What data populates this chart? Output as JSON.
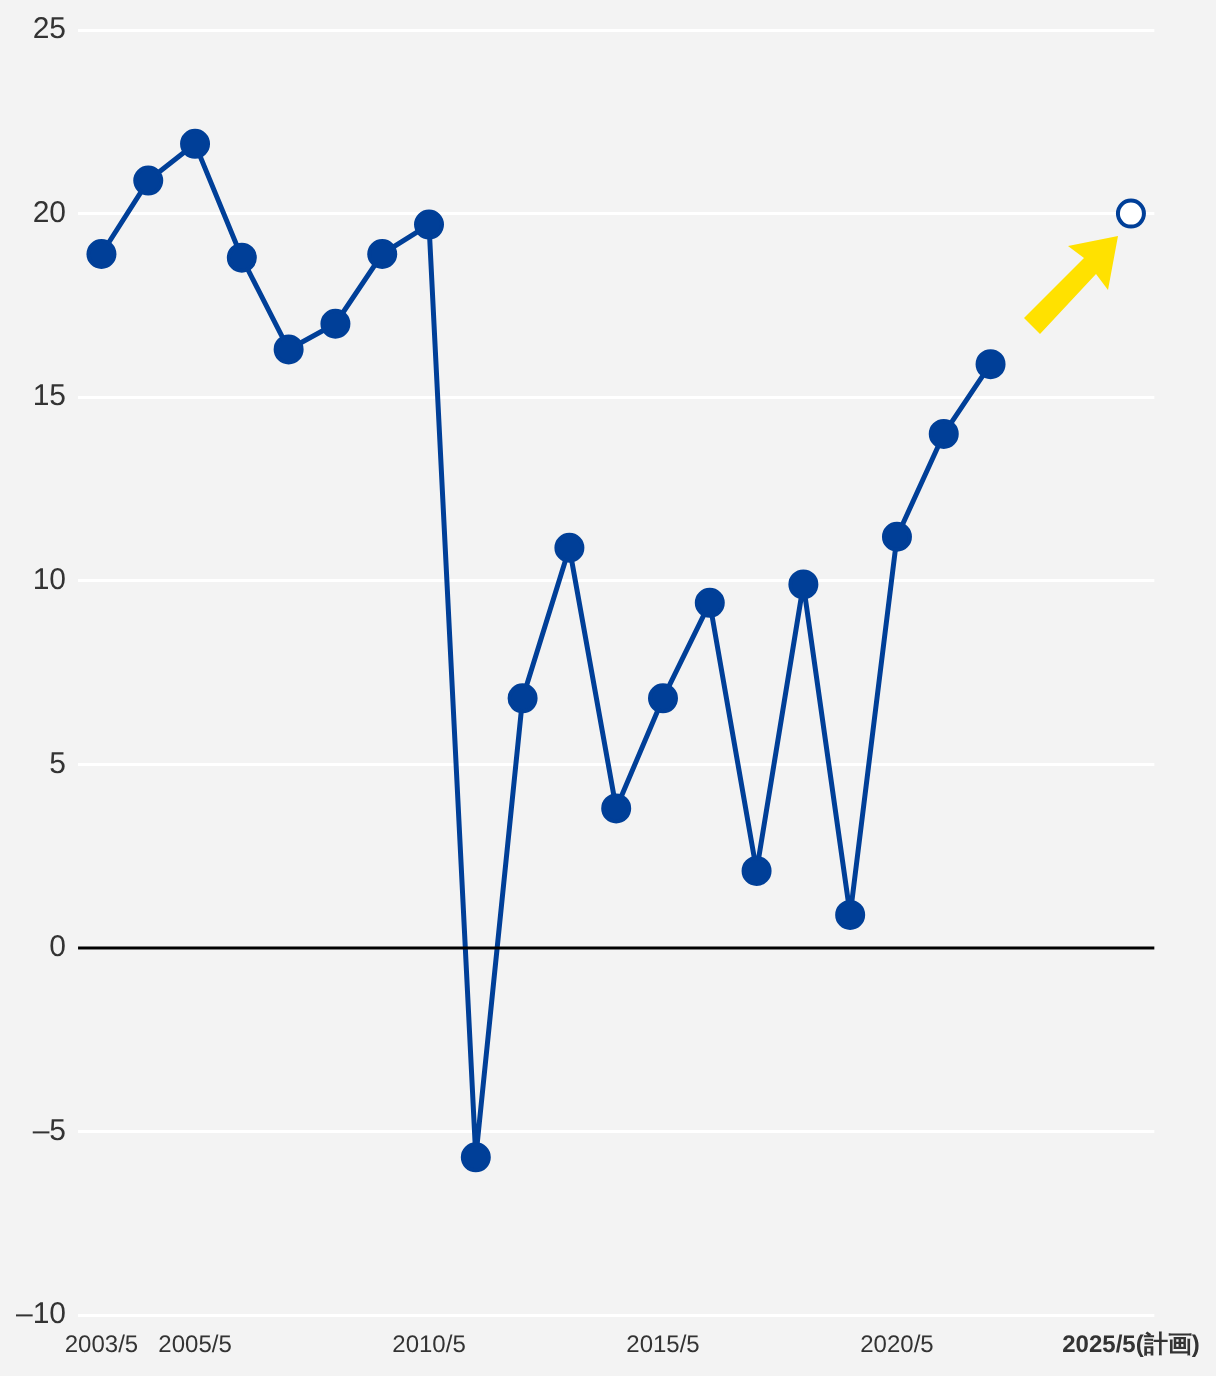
{
  "chart_data": {
    "type": "line",
    "categories": [
      "2003/5",
      null,
      "2005/5",
      null,
      null,
      null,
      null,
      "2010/5",
      null,
      null,
      null,
      null,
      "2015/5",
      null,
      null,
      null,
      null,
      "2020/5",
      null,
      null,
      null,
      null,
      "2025/5(計画)"
    ],
    "series": [
      {
        "color": "#003f98",
        "values": [
          18.9,
          20.9,
          21.9,
          18.8,
          16.3,
          17.0,
          18.9,
          19.7,
          -5.7,
          6.8,
          10.9,
          3.8,
          6.8,
          9.4,
          2.1,
          9.9,
          0.9,
          11.2,
          14.0,
          15.9,
          null,
          null,
          null
        ]
      },
      {
        "type": "scatter",
        "color": "#003f98",
        "values": [
          null,
          null,
          null,
          null,
          null,
          null,
          null,
          null,
          null,
          null,
          null,
          null,
          null,
          null,
          null,
          null,
          null,
          null,
          null,
          null,
          null,
          null,
          20.0
        ]
      }
    ],
    "ylim": [
      -10,
      25
    ],
    "yticks": [
      {
        "value": -10,
        "label": "–10"
      },
      {
        "value": -5,
        "label": "–5"
      },
      0,
      5,
      10,
      15,
      20,
      25
    ],
    "grid": "y",
    "marker": "circle",
    "line_style": "solid",
    "ref_lines": [
      {
        "axis": "y",
        "value": 0,
        "color": "#000000"
      }
    ]
  }
}
